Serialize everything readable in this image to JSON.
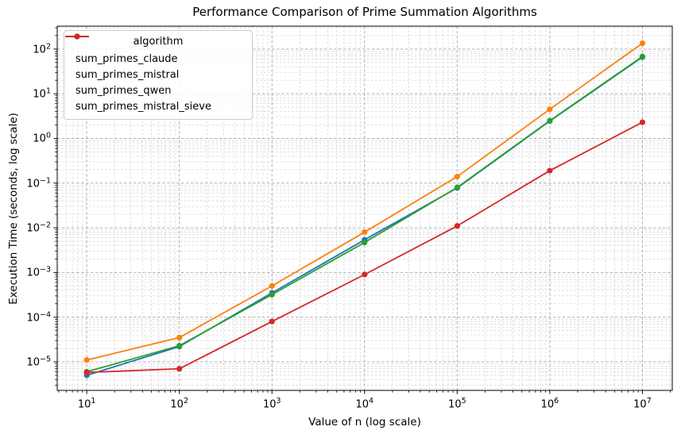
{
  "chart_data": {
    "type": "line",
    "title": "Performance Comparison of Prime Summation Algorithms",
    "xlabel": "Value of n (log scale)",
    "ylabel": "Execution Time (seconds, log scale)",
    "x_scale": "log",
    "y_scale": "log",
    "grid": "both",
    "legend_title": "algorithm",
    "legend_position": "upper left",
    "x": [
      10,
      100,
      1000,
      10000,
      100000,
      1000000,
      10000000
    ],
    "series": [
      {
        "name": "sum_primes_claude",
        "color": "#1f77b4",
        "values": [
          5e-06,
          2.2e-05,
          0.00035,
          0.0054,
          0.078,
          2.45,
          66
        ]
      },
      {
        "name": "sum_primes_mistral",
        "color": "#ff7f0e",
        "values": [
          1.1e-05,
          3.5e-05,
          0.0005,
          0.008,
          0.14,
          4.5,
          135
        ]
      },
      {
        "name": "sum_primes_qwen",
        "color": "#2ca02c",
        "values": [
          6e-06,
          2.3e-05,
          0.00032,
          0.0047,
          0.08,
          2.5,
          68
        ]
      },
      {
        "name": "sum_primes_mistral_sieve",
        "color": "#d62728",
        "values": [
          5.8e-06,
          7e-06,
          8e-05,
          0.0009,
          0.011,
          0.19,
          2.3
        ]
      }
    ],
    "x_tick_exponents": [
      1,
      2,
      3,
      4,
      5,
      6,
      7
    ],
    "y_tick_exponents": [
      2,
      1,
      0,
      -1,
      -2,
      -3,
      -4,
      -5
    ],
    "xlim": [
      4.8,
      21000000
    ],
    "ylim": [
      2.3e-06,
      325
    ],
    "colors": {
      "grid_major": "#b0b0b0",
      "grid_minor": "#d4d4d4",
      "spine": "#000000",
      "legend_border": "#cccccc"
    }
  }
}
